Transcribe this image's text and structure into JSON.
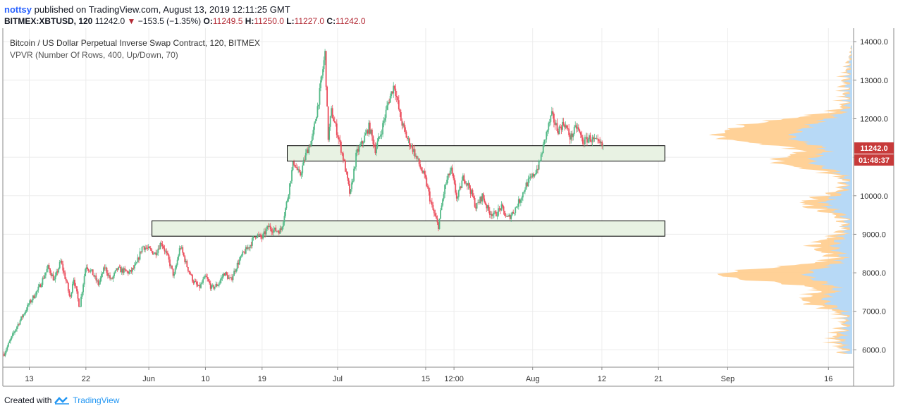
{
  "publish": {
    "user": "nottsy",
    "text": "published on TradingView.com, August 13, 2019 12:11:25 GMT"
  },
  "quote": {
    "symbol": "BITMEX:XBTUSD, 120",
    "last": "11242.0",
    "change": "−153.5 (−1.35%)",
    "o_label": "O:",
    "o": "11249.5",
    "h_label": "H:",
    "h": "11250.0",
    "l_label": "L:",
    "l": "11227.0",
    "c_label": "C:",
    "c": "11242.0"
  },
  "legend": {
    "title": "Bitcoin / US Dollar Perpetual Inverse Swap Contract, 120, BITMEX",
    "indicator": "VPVR (Number Of Rows, 400, Up/Down, 70)"
  },
  "price_tag": {
    "price": "11242.0",
    "countdown": "01:48:37"
  },
  "footer": {
    "created_with": "Created with",
    "brand": "TradingView"
  },
  "colors": {
    "up": "#53b987",
    "down": "#eb4d5c",
    "up_vol": "#b3d9fb",
    "down_vol": "#ffcc8c",
    "zone_fill": "#e8f2e3",
    "zone_stroke": "#000000",
    "tag": "#c73a3a"
  },
  "chart_data": {
    "type": "candlestick",
    "title": "Bitcoin / US Dollar Perpetual Inverse Swap Contract, 120, BITMEX",
    "y_ticks": [
      "6000.0",
      "7000.0",
      "8000.0",
      "9000.0",
      "10000.0",
      "11000.0",
      "12000.0",
      "13000.0",
      "14000.0"
    ],
    "ylim": [
      5550,
      14350
    ],
    "x_ticks": [
      "13",
      "22",
      "Jun",
      "10",
      "19",
      "Jul",
      "15",
      "12:00",
      "Aug",
      "12",
      "21",
      "Sep",
      "16"
    ],
    "x_tick_days": [
      0,
      9,
      19,
      28,
      37,
      49,
      63,
      67.5,
      80,
      91,
      100,
      111,
      127
    ],
    "xlim": [
      -4.2,
      131
    ],
    "price_path": [
      [
        -4,
        5900
      ],
      [
        -2,
        6600
      ],
      [
        0,
        7200
      ],
      [
        1.5,
        7600
      ],
      [
        3,
        8150
      ],
      [
        4,
        7800
      ],
      [
        5,
        8300
      ],
      [
        6,
        7700
      ],
      [
        6.5,
        7300
      ],
      [
        7,
        7900
      ],
      [
        8,
        7100
      ],
      [
        9,
        8200
      ],
      [
        10,
        8000
      ],
      [
        11,
        7700
      ],
      [
        12,
        8150
      ],
      [
        13,
        7800
      ],
      [
        14,
        8100
      ],
      [
        16,
        8000
      ],
      [
        17,
        8200
      ],
      [
        18,
        8700
      ],
      [
        19,
        8600
      ],
      [
        20,
        8500
      ],
      [
        21,
        8800
      ],
      [
        22,
        8400
      ],
      [
        23,
        7900
      ],
      [
        24,
        8700
      ],
      [
        25,
        8200
      ],
      [
        26,
        7800
      ],
      [
        27,
        7600
      ],
      [
        28,
        7900
      ],
      [
        29,
        7600
      ],
      [
        30,
        7700
      ],
      [
        31,
        8000
      ],
      [
        32,
        7800
      ],
      [
        33,
        8200
      ],
      [
        34,
        8500
      ],
      [
        35,
        8700
      ],
      [
        36,
        9000
      ],
      [
        37,
        8900
      ],
      [
        38,
        9200
      ],
      [
        39,
        9100
      ],
      [
        40,
        9100
      ],
      [
        41,
        9900
      ],
      [
        42,
        10900
      ],
      [
        43,
        10500
      ],
      [
        44,
        11100
      ],
      [
        45,
        11500
      ],
      [
        46,
        12500
      ],
      [
        47,
        13700
      ],
      [
        47.5,
        11500
      ],
      [
        48,
        12200
      ],
      [
        49,
        11600
      ],
      [
        50,
        10900
      ],
      [
        51,
        10000
      ],
      [
        52,
        11100
      ],
      [
        53,
        11400
      ],
      [
        54,
        11800
      ],
      [
        55,
        11200
      ],
      [
        56,
        11700
      ],
      [
        57,
        12400
      ],
      [
        58,
        12900
      ],
      [
        59,
        12000
      ],
      [
        60,
        11500
      ],
      [
        61,
        11200
      ],
      [
        62,
        10800
      ],
      [
        63,
        10400
      ],
      [
        64,
        9700
      ],
      [
        65,
        9200
      ],
      [
        66,
        10200
      ],
      [
        67,
        10700
      ],
      [
        68,
        9900
      ],
      [
        69,
        10500
      ],
      [
        70,
        10200
      ],
      [
        71,
        9700
      ],
      [
        72,
        10000
      ],
      [
        73,
        9600
      ],
      [
        74,
        9500
      ],
      [
        75,
        9700
      ],
      [
        76,
        9400
      ],
      [
        77,
        9600
      ],
      [
        78,
        9900
      ],
      [
        79,
        10300
      ],
      [
        80,
        10500
      ],
      [
        81,
        10800
      ],
      [
        82,
        11500
      ],
      [
        83,
        12100
      ],
      [
        84,
        11700
      ],
      [
        85,
        11900
      ],
      [
        86,
        11500
      ],
      [
        87,
        11800
      ],
      [
        88,
        11400
      ],
      [
        89,
        11500
      ],
      [
        90,
        11400
      ],
      [
        91,
        11300
      ],
      [
        91.3,
        11242
      ]
    ],
    "zones": [
      {
        "y_low": 10900,
        "y_high": 11300,
        "x_start": 41,
        "x_end": 101
      },
      {
        "y_low": 8950,
        "y_high": 9350,
        "x_start": 19.5,
        "x_end": 101
      }
    ],
    "volume_profile": {
      "rows": 400,
      "peaks": [
        {
          "price": 11500,
          "up": 0.55,
          "down": 0.65
        },
        {
          "price": 11850,
          "up": 0.3,
          "down": 0.55
        },
        {
          "price": 10900,
          "up": 0.4,
          "down": 0.35
        },
        {
          "price": 9800,
          "up": 0.25,
          "down": 0.2
        },
        {
          "price": 8700,
          "up": 0.15,
          "down": 0.2
        },
        {
          "price": 7950,
          "up": 0.45,
          "down": 0.9
        },
        {
          "price": 7300,
          "up": 0.25,
          "down": 0.2
        },
        {
          "price": 6300,
          "up": 0.08,
          "down": 0.05
        }
      ]
    }
  }
}
